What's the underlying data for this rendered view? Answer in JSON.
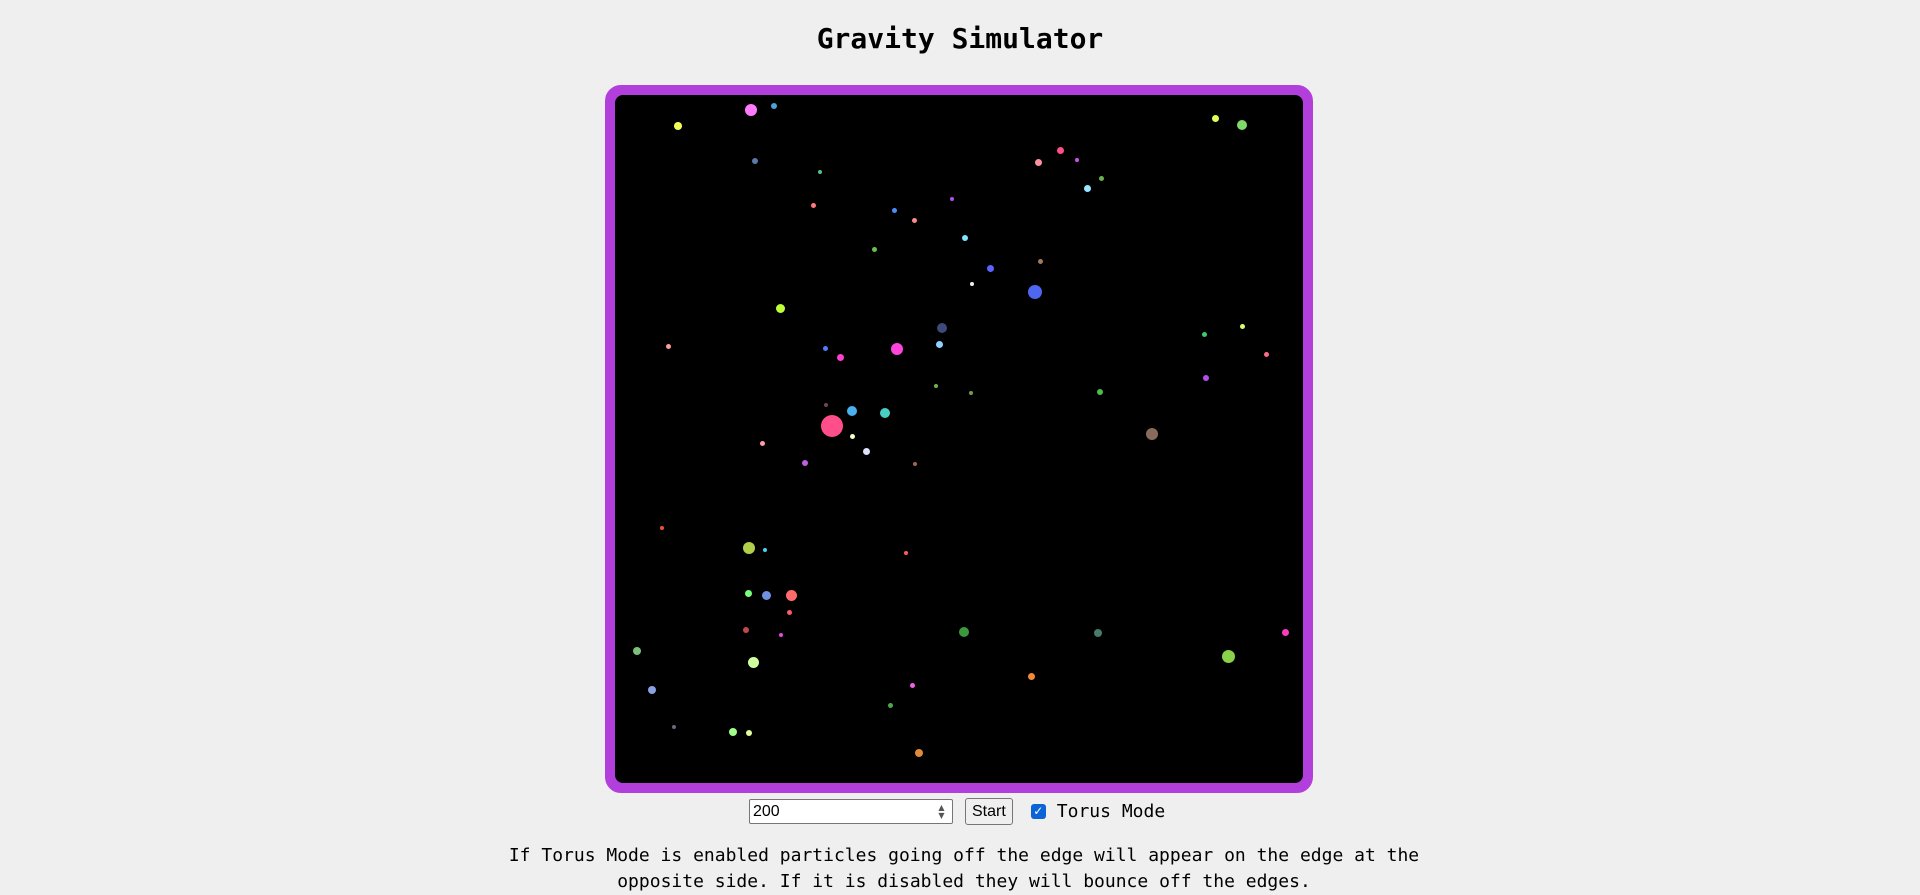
{
  "page": {
    "title": "Gravity Simulator",
    "frame_color": "#b23fdb",
    "canvas_background": "#000000"
  },
  "controls": {
    "particle_count": "200",
    "start_label": "Start",
    "torus_checked": true,
    "torus_label": "Torus Mode"
  },
  "description": "If Torus Mode is enabled particles going off the edge will appear on the edge at the opposite side. If it is disabled they will bounce off the edges.",
  "particles": [
    {
      "color": "#ff7aff"
    },
    {
      "color": "#4aa3d8"
    },
    {
      "color": "#f2ff59"
    },
    {
      "color": "#5a78a8"
    },
    {
      "color": "#4ec08b"
    },
    {
      "color": "#ff8fa3"
    },
    {
      "color": "#ff4e8a"
    },
    {
      "color": "#d14ff0"
    },
    {
      "color": "#98e6ff"
    },
    {
      "color": "#6db04a"
    },
    {
      "color": "#dcff5a"
    },
    {
      "color": "#7fda6a"
    },
    {
      "color": "#ff7a7a"
    },
    {
      "color": "#4c8cff"
    },
    {
      "color": "#b04ff0"
    },
    {
      "color": "#7fe5ff"
    },
    {
      "color": "#ff8a8a"
    },
    {
      "color": "#6abf4a"
    },
    {
      "color": "#5d63ff"
    },
    {
      "color": "#a07a5a"
    },
    {
      "color": "#f0f0f0"
    },
    {
      "color": "#4f66f0"
    },
    {
      "color": "#3d4a7a"
    },
    {
      "color": "#ff44dd"
    },
    {
      "color": "#ff9b9b"
    },
    {
      "color": "#4d7cff"
    },
    {
      "color": "#ff3fd0"
    },
    {
      "color": "#d8ff6a"
    },
    {
      "color": "#3dcc6a"
    },
    {
      "color": "#ff6a8a"
    },
    {
      "color": "#b04ff0"
    },
    {
      "color": "#6fb34a"
    },
    {
      "color": "#7a9a4a"
    },
    {
      "color": "#4ac04a"
    },
    {
      "color": "#6a4a4a"
    },
    {
      "color": "#4ab0f0"
    },
    {
      "color": "#48cfc2"
    },
    {
      "color": "#ff4e8a"
    },
    {
      "color": "#f5ffc0"
    },
    {
      "color": "#e0e0ff"
    },
    {
      "color": "#8a6a5a"
    },
    {
      "color": "#ff9aaa"
    },
    {
      "color": "#c060e0"
    },
    {
      "color": "#a06a4a"
    },
    {
      "color": "#4ad0f0"
    },
    {
      "color": "#f05030"
    },
    {
      "color": "#b0d04a"
    },
    {
      "color": "#ff5a5a"
    },
    {
      "color": "#7aff7a"
    },
    {
      "color": "#7090e0"
    },
    {
      "color": "#ff6a6a"
    },
    {
      "color": "#ff5a6a"
    },
    {
      "color": "#c04a4a"
    },
    {
      "color": "#e04ae0"
    },
    {
      "color": "#7ac07a"
    },
    {
      "color": "#3a9a3a"
    },
    {
      "color": "#4a7a6a"
    },
    {
      "color": "#ff3dc0"
    },
    {
      "color": "#8ad04a"
    },
    {
      "color": "#d0ffa0"
    },
    {
      "color": "#8aa0e0"
    },
    {
      "color": "#f08a3a"
    },
    {
      "color": "#f060e0"
    },
    {
      "color": "#4aaa4a"
    },
    {
      "color": "#6a6a7a"
    },
    {
      "color": "#a0ff8a"
    },
    {
      "color": "#e0ff9a"
    },
    {
      "color": "#e08a3a"
    },
    {
      "color": "#bfff3a"
    },
    {
      "color": "#8fd0ff"
    }
  ]
}
